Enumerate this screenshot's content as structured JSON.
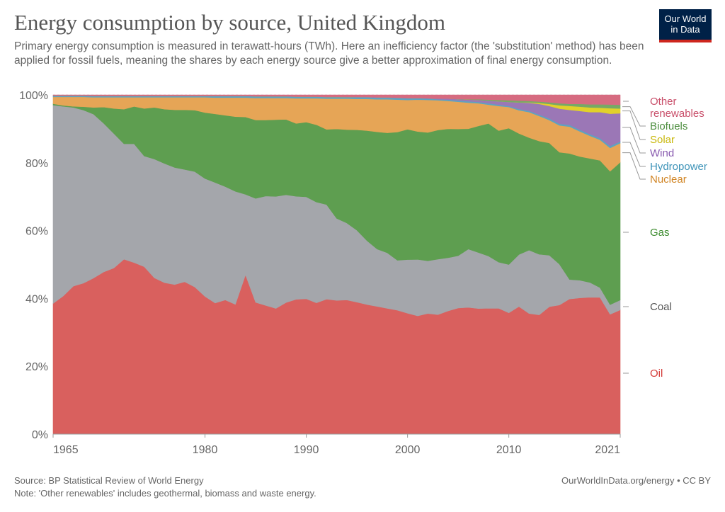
{
  "header": {
    "title": "Energy consumption by source, United Kingdom",
    "subtitle": "Primary energy consumption is measured in terawatt-hours (TWh). Here an inefficiency factor (the 'substitution' method) has been applied for fossil fuels, meaning the shares by each energy source give a better approximation of final energy consumption."
  },
  "logo": {
    "line1": "Our World",
    "line2": "in Data",
    "bg": "#002147",
    "accent": "#ce261e"
  },
  "footer": {
    "source": "Source: BP Statistical Review of World Energy",
    "note": "Note: 'Other renewables' includes geothermal, biomass and waste energy.",
    "credit": "OurWorldInData.org/energy • CC BY"
  },
  "chart_data": {
    "type": "area",
    "stacked": true,
    "unit": "%",
    "ylim": [
      0,
      100
    ],
    "yticks": [
      "0%",
      "20%",
      "40%",
      "60%",
      "80%",
      "100%"
    ],
    "xlim": [
      1965,
      2021
    ],
    "xticks": [
      "1965",
      "1980",
      "1990",
      "2000",
      "2010",
      "2021"
    ],
    "grid": "horizontal dotted",
    "legend": "right, inline labels",
    "x": [
      1965,
      1966,
      1967,
      1968,
      1969,
      1970,
      1971,
      1972,
      1973,
      1974,
      1975,
      1976,
      1977,
      1978,
      1979,
      1980,
      1981,
      1982,
      1983,
      1984,
      1985,
      1986,
      1987,
      1988,
      1989,
      1990,
      1991,
      1992,
      1993,
      1994,
      1995,
      1996,
      1997,
      1998,
      1999,
      2000,
      2001,
      2002,
      2003,
      2004,
      2005,
      2006,
      2007,
      2008,
      2009,
      2010,
      2011,
      2012,
      2013,
      2014,
      2015,
      2016,
      2017,
      2018,
      2019,
      2020,
      2021
    ],
    "series": [
      {
        "name": "Oil",
        "color": "#d9605e",
        "label_color": "#d43a37",
        "values": [
          38.5,
          40.8,
          43.7,
          44.6,
          46.1,
          47.9,
          49.0,
          51.5,
          50.5,
          49.3,
          46.0,
          44.6,
          44.1,
          44.9,
          43.3,
          40.5,
          38.6,
          39.5,
          38.2,
          46.9,
          38.8,
          37.9,
          37.0,
          38.7,
          39.6,
          39.8,
          38.7,
          39.5,
          39.3,
          39.4,
          38.9,
          38.1,
          37.6,
          37.1,
          36.7,
          35.8,
          35.2,
          35.9,
          35.7,
          36.6,
          37.6,
          37.8,
          37.6,
          37.4,
          37.3,
          36.1,
          37.5,
          36.0,
          35.6,
          37.9,
          38.5,
          40.4,
          40.7,
          40.5,
          40.5,
          35.0,
          36.5
        ]
      },
      {
        "name": "Coal",
        "color": "#a4a6ab",
        "label_color": "#555555",
        "values": [
          58.5,
          56.0,
          52.8,
          51.1,
          48.4,
          43.9,
          39.7,
          34.0,
          35.0,
          32.6,
          35.0,
          35.1,
          34.5,
          33.1,
          34.0,
          34.7,
          35.5,
          33.4,
          33.3,
          23.7,
          30.6,
          32.2,
          33.0,
          31.7,
          30.3,
          30.0,
          29.7,
          27.7,
          24.1,
          22.6,
          21.2,
          18.8,
          16.9,
          16.4,
          14.8,
          15.9,
          16.8,
          15.7,
          16.6,
          15.8,
          15.6,
          17.4,
          16.8,
          15.5,
          13.7,
          14.4,
          15.3,
          18.9,
          18.1,
          15.3,
          12.2,
          5.8,
          5.3,
          4.4,
          2.9,
          2.8,
          2.9
        ]
      },
      {
        "name": "Gas",
        "color": "#5e9e50",
        "label_color": "#3c8c2e",
        "values": [
          0.4,
          0.3,
          0.3,
          1.0,
          2.0,
          4.8,
          7.4,
          10.2,
          11.0,
          14.0,
          15.2,
          16.0,
          17.0,
          17.6,
          18.1,
          19.4,
          20.2,
          21.0,
          22.0,
          22.8,
          23.1,
          22.4,
          22.6,
          22.2,
          21.4,
          22.0,
          22.8,
          22.0,
          26.3,
          27.4,
          29.6,
          32.4,
          34.5,
          35.4,
          38.0,
          38.6,
          38.1,
          38.2,
          38.6,
          38.3,
          37.8,
          35.9,
          37.9,
          39.4,
          39.0,
          40.6,
          35.6,
          33.6,
          33.8,
          33.4,
          33.4,
          37.7,
          37.0,
          36.7,
          37.7,
          39.0,
          40.5
        ]
      },
      {
        "name": "Nuclear",
        "color": "#e6a556",
        "label_color": "#d18525",
        "values": [
          2.0,
          2.5,
          2.8,
          2.9,
          3.0,
          2.9,
          3.3,
          3.5,
          2.7,
          3.3,
          3.0,
          3.5,
          3.7,
          3.7,
          3.8,
          4.5,
          4.8,
          5.2,
          5.6,
          5.7,
          6.5,
          6.5,
          6.4,
          6.3,
          7.4,
          7.0,
          7.8,
          9.0,
          8.9,
          9.1,
          9.1,
          9.3,
          9.6,
          9.9,
          9.6,
          8.7,
          9.5,
          9.7,
          8.9,
          8.3,
          8.1,
          7.8,
          6.8,
          5.6,
          7.3,
          6.3,
          6.8,
          7.6,
          7.5,
          6.8,
          8.0,
          8.0,
          7.5,
          6.7,
          6.1,
          6.8,
          5.6
        ]
      },
      {
        "name": "Hydropower",
        "color": "#5ea3c0",
        "label_color": "#3d93b8",
        "values": [
          0.4,
          0.4,
          0.4,
          0.4,
          0.4,
          0.4,
          0.4,
          0.4,
          0.4,
          0.4,
          0.4,
          0.4,
          0.4,
          0.4,
          0.4,
          0.4,
          0.5,
          0.5,
          0.5,
          0.5,
          0.5,
          0.5,
          0.5,
          0.5,
          0.5,
          0.5,
          0.5,
          0.5,
          0.5,
          0.5,
          0.5,
          0.5,
          0.5,
          0.5,
          0.5,
          0.5,
          0.4,
          0.4,
          0.3,
          0.4,
          0.4,
          0.4,
          0.4,
          0.4,
          0.4,
          0.3,
          0.4,
          0.4,
          0.4,
          0.5,
          0.5,
          0.5,
          0.5,
          0.5,
          0.5,
          0.6,
          0.5
        ]
      },
      {
        "name": "Wind",
        "color": "#9b77b6",
        "label_color": "#8a5cb0",
        "values": [
          0,
          0,
          0,
          0,
          0,
          0,
          0,
          0,
          0,
          0,
          0,
          0,
          0,
          0,
          0,
          0,
          0,
          0,
          0,
          0,
          0,
          0,
          0,
          0,
          0,
          0,
          0,
          0,
          0,
          0,
          0.1,
          0.1,
          0.1,
          0.1,
          0.1,
          0.1,
          0.1,
          0.1,
          0.2,
          0.3,
          0.4,
          0.5,
          0.6,
          0.8,
          1.0,
          1.2,
          1.9,
          2.4,
          3.2,
          3.7,
          4.5,
          4.5,
          5.6,
          6.5,
          7.7,
          9.4,
          8.3
        ]
      },
      {
        "name": "Solar",
        "color": "#e1d12a",
        "label_color": "#c9b80c",
        "values": [
          0,
          0,
          0,
          0,
          0,
          0,
          0,
          0,
          0,
          0,
          0,
          0,
          0,
          0,
          0,
          0,
          0,
          0,
          0,
          0,
          0,
          0,
          0,
          0,
          0,
          0,
          0,
          0,
          0,
          0,
          0,
          0,
          0,
          0,
          0,
          0,
          0,
          0,
          0,
          0,
          0,
          0,
          0,
          0,
          0,
          0,
          0.03,
          0.15,
          0.3,
          0.6,
          1.0,
          1.2,
          1.3,
          1.4,
          1.3,
          1.6,
          1.4
        ]
      },
      {
        "name": "Biofuels",
        "color": "#77a966",
        "label_color": "#4c8d3e",
        "values": [
          0,
          0,
          0,
          0,
          0,
          0,
          0,
          0,
          0,
          0,
          0,
          0,
          0,
          0,
          0,
          0,
          0,
          0,
          0,
          0,
          0,
          0,
          0,
          0,
          0,
          0,
          0,
          0,
          0,
          0,
          0,
          0,
          0,
          0,
          0,
          0,
          0,
          0,
          0,
          0,
          0.05,
          0.1,
          0.2,
          0.3,
          0.4,
          0.5,
          0.5,
          0.4,
          0.4,
          0.5,
          0.6,
          0.6,
          0.8,
          0.9,
          1.0,
          1.1,
          1.1
        ]
      },
      {
        "name": "Other renewables",
        "color": "#d66b80",
        "label_color": "#c94f6a",
        "values": [
          0.2,
          0.2,
          0.2,
          0.2,
          0.3,
          0.3,
          0.3,
          0.3,
          0.3,
          0.3,
          0.3,
          0.3,
          0.3,
          0.3,
          0.3,
          0.3,
          0.3,
          0.3,
          0.3,
          0.3,
          0.4,
          0.4,
          0.4,
          0.4,
          0.5,
          0.5,
          0.5,
          0.6,
          0.6,
          0.6,
          0.6,
          0.6,
          0.7,
          0.7,
          0.8,
          0.9,
          0.9,
          1.0,
          1.1,
          1.1,
          1.2,
          1.3,
          1.3,
          1.4,
          1.5,
          1.6,
          1.7,
          1.8,
          2.0,
          2.2,
          2.5,
          2.7,
          2.7,
          2.8,
          2.8,
          2.8,
          2.9
        ]
      }
    ]
  }
}
